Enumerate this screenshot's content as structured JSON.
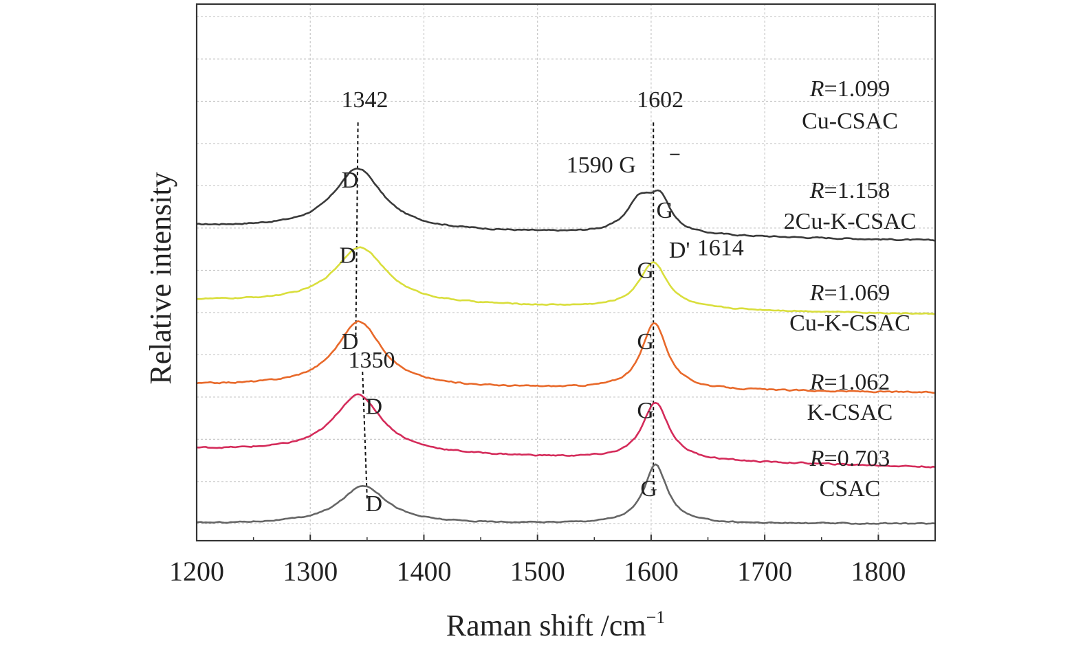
{
  "chart_data": {
    "type": "line",
    "title": "",
    "xlabel": "Raman shift /cm",
    "xlabel_sup": "−1",
    "ylabel": "Relative intensity",
    "xlim": [
      1200,
      1850
    ],
    "ylim": [
      -0.2,
      6.15
    ],
    "x_ticks": [
      1200,
      1300,
      1400,
      1500,
      1600,
      1700,
      1800
    ],
    "x_tick_labels": [
      "1200",
      "1300",
      "1400",
      "1500",
      "1600",
      "1700",
      "1800"
    ],
    "y_gridlines": [
      0.0,
      0.5,
      1.0,
      1.5,
      2.0,
      2.5,
      3.0,
      3.5,
      4.0,
      4.5,
      5.0,
      5.5,
      6.0
    ],
    "grid": true,
    "series": [
      {
        "name": "Cu-CSAC",
        "r_prefix": "R",
        "r_value": "=1.099",
        "color": "#3a3a3a",
        "baseline": 3.52,
        "end_value": 3.35,
        "bands": [
          {
            "center": 1342,
            "height": 0.72,
            "width": 52
          },
          {
            "center": 1590,
            "height": 0.38,
            "width": 28
          },
          {
            "center": 1608,
            "height": 0.38,
            "width": 22
          }
        ],
        "noise": 0.012
      },
      {
        "name": "2Cu-K-CSAC",
        "r_prefix": "R",
        "r_value": "=1.158",
        "color": "#d9de3c",
        "baseline": 2.64,
        "end_value": 2.48,
        "bands": [
          {
            "center": 1344,
            "height": 0.67,
            "width": 55
          },
          {
            "center": 1602,
            "height": 0.55,
            "width": 30
          }
        ],
        "noise": 0.01
      },
      {
        "name": "Cu-K-CSAC",
        "r_prefix": "R",
        "r_value": "=1.069",
        "color": "#e8692a",
        "baseline": 1.64,
        "end_value": 1.55,
        "bands": [
          {
            "center": 1343,
            "height": 0.77,
            "width": 50
          },
          {
            "center": 1603,
            "height": 0.79,
            "width": 27
          }
        ],
        "noise": 0.012
      },
      {
        "name": "K-CSAC",
        "r_prefix": "R",
        "r_value": "=1.062",
        "color": "#d42b5a",
        "baseline": 0.88,
        "end_value": 0.67,
        "bands": [
          {
            "center": 1342,
            "height": 0.69,
            "width": 52
          },
          {
            "center": 1604,
            "height": 0.68,
            "width": 28
          }
        ],
        "noise": 0.012
      },
      {
        "name": "CSAC",
        "r_prefix": "R",
        "r_value": "=0.703",
        "color": "#666666",
        "baseline": 0.0,
        "end_value": 0.0,
        "bands": [
          {
            "center": 1347,
            "height": 0.45,
            "width": 50
          },
          {
            "center": 1604,
            "height": 0.69,
            "width": 25
          }
        ],
        "noise": 0.01
      }
    ],
    "annotations": [
      {
        "text": "1342",
        "x": 1348,
        "y": 4.93
      },
      {
        "text": "1602",
        "x": 1608,
        "y": 4.93
      },
      {
        "text": "1590 G",
        "x": 1556,
        "y": 4.16
      },
      {
        "text": "D",
        "x": 1335,
        "y": 3.98
      },
      {
        "text": "G",
        "x": 1612,
        "y": 3.62
      },
      {
        "text": "D",
        "x": 1333,
        "y": 3.09
      },
      {
        "text": "G",
        "x": 1595,
        "y": 2.91
      },
      {
        "text": "D'",
        "x": 1625,
        "y": 3.15
      },
      {
        "text": "1614",
        "x": 1661,
        "y": 3.18
      },
      {
        "text": "D",
        "x": 1335,
        "y": 2.07
      },
      {
        "text": "G",
        "x": 1595,
        "y": 2.07
      },
      {
        "text": "1350",
        "x": 1354,
        "y": 1.85
      },
      {
        "text": "D",
        "x": 1356,
        "y": 1.3
      },
      {
        "text": "G",
        "x": 1595,
        "y": 1.25
      },
      {
        "text": "G",
        "x": 1598,
        "y": 0.33
      },
      {
        "text": "D",
        "x": 1356,
        "y": 0.15
      }
    ],
    "guide_lines": [
      {
        "x_top": 1342,
        "x_bottom": 1340,
        "y_top": 4.75,
        "y_bottom": 2.15
      },
      {
        "x_top": 1602,
        "x_bottom": 1602,
        "y_top": 4.75,
        "y_bottom": 0.35
      },
      {
        "x_top": 1346,
        "x_bottom": 1350,
        "y_top": 1.8,
        "y_bottom": 0.3
      }
    ]
  }
}
